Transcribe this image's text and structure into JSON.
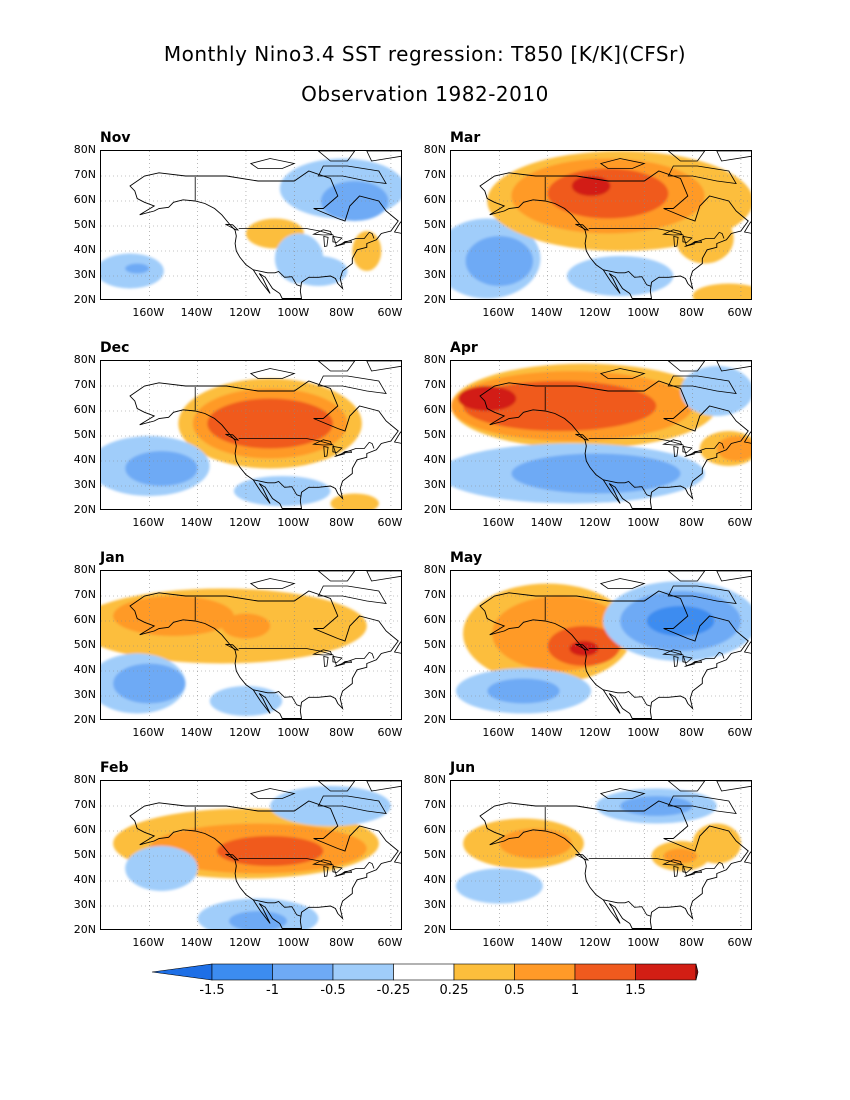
{
  "title_line1": "Monthly Nino3.4 SST regression: T850 [K/K](CFSr)",
  "title_line2": "Observation 1982-2010",
  "lat_ticks": [
    "80N",
    "70N",
    "60N",
    "50N",
    "40N",
    "30N",
    "20N"
  ],
  "lon_ticks": [
    "160W",
    "140W",
    "120W",
    "100W",
    "80W",
    "60W"
  ],
  "colors": {
    "-1.5": "#1e6fe6",
    "-1": "#3c8cf0",
    "-0.5": "#6eaaf5",
    "-0.25": "#a0cdfa",
    "0": "#ffffff",
    "0.25": "#fcbe3c",
    "0.5": "#ff9a28",
    "1": "#f05a1e",
    "1.5": "#d21e14",
    "max": "#a00a0a"
  },
  "colorbar": {
    "labels": [
      "-1.5",
      "-1",
      "-0.5",
      "-0.25",
      "0.25",
      "0.5",
      "1",
      "1.5"
    ]
  },
  "panels": [
    {
      "month": "Nov",
      "blobs": [
        {
          "lon": -108,
          "lat": 47,
          "rx": 12,
          "ry": 6,
          "level": 0.25
        },
        {
          "lon": -70,
          "lat": 40,
          "rx": 6,
          "ry": 8,
          "level": 0.25
        },
        {
          "lon": -90,
          "lat": 32,
          "rx": 12,
          "ry": 6,
          "level": -0.25
        },
        {
          "lon": -98,
          "lat": 37,
          "rx": 10,
          "ry": 10,
          "level": -0.25
        },
        {
          "lon": -168,
          "lat": 32,
          "rx": 14,
          "ry": 7,
          "level": -0.25
        },
        {
          "lon": -165,
          "lat": 33,
          "rx": 5,
          "ry": 2,
          "level": -0.5
        },
        {
          "lon": -80,
          "lat": 65,
          "rx": 26,
          "ry": 12,
          "level": -0.25
        },
        {
          "lon": -75,
          "lat": 60,
          "rx": 14,
          "ry": 8,
          "level": -0.5
        }
      ]
    },
    {
      "month": "Mar",
      "blobs": [
        {
          "lon": -165,
          "lat": 37,
          "rx": 22,
          "ry": 16,
          "level": -0.25
        },
        {
          "lon": -160,
          "lat": 36,
          "rx": 14,
          "ry": 10,
          "level": -0.5
        },
        {
          "lon": -110,
          "lat": 30,
          "rx": 22,
          "ry": 8,
          "level": -0.25
        },
        {
          "lon": -110,
          "lat": 60,
          "rx": 55,
          "ry": 20,
          "level": 0.25
        },
        {
          "lon": -115,
          "lat": 62,
          "rx": 40,
          "ry": 15,
          "level": 0.5
        },
        {
          "lon": -115,
          "lat": 63,
          "rx": 25,
          "ry": 10,
          "level": 1
        },
        {
          "lon": -122,
          "lat": 66,
          "rx": 8,
          "ry": 4,
          "level": 1.5
        },
        {
          "lon": -75,
          "lat": 45,
          "rx": 12,
          "ry": 10,
          "level": 0.25
        },
        {
          "lon": -65,
          "lat": 22,
          "rx": 15,
          "ry": 5,
          "level": 0.25
        }
      ]
    },
    {
      "month": "Dec",
      "blobs": [
        {
          "lon": -110,
          "lat": 55,
          "rx": 38,
          "ry": 18,
          "level": 0.25
        },
        {
          "lon": -110,
          "lat": 55,
          "rx": 32,
          "ry": 14,
          "level": 0.5
        },
        {
          "lon": -110,
          "lat": 55,
          "rx": 26,
          "ry": 10,
          "level": 1
        },
        {
          "lon": -160,
          "lat": 38,
          "rx": 25,
          "ry": 12,
          "level": -0.25
        },
        {
          "lon": -155,
          "lat": 37,
          "rx": 15,
          "ry": 7,
          "level": -0.5
        },
        {
          "lon": -105,
          "lat": 28,
          "rx": 20,
          "ry": 6,
          "level": -0.25
        },
        {
          "lon": -75,
          "lat": 23,
          "rx": 10,
          "ry": 4,
          "level": 0.25
        }
      ]
    },
    {
      "month": "Apr",
      "blobs": [
        {
          "lon": -125,
          "lat": 62,
          "rx": 55,
          "ry": 17,
          "level": 0.25
        },
        {
          "lon": -130,
          "lat": 62,
          "rx": 50,
          "ry": 14,
          "level": 0.5
        },
        {
          "lon": -135,
          "lat": 62,
          "rx": 40,
          "ry": 10,
          "level": 1
        },
        {
          "lon": -165,
          "lat": 65,
          "rx": 12,
          "ry": 5,
          "level": 1.5
        },
        {
          "lon": -130,
          "lat": 35,
          "rx": 55,
          "ry": 12,
          "level": -0.25
        },
        {
          "lon": -120,
          "lat": 35,
          "rx": 35,
          "ry": 8,
          "level": -0.5
        },
        {
          "lon": -70,
          "lat": 68,
          "rx": 15,
          "ry": 10,
          "level": -0.25
        },
        {
          "lon": -65,
          "lat": 45,
          "rx": 12,
          "ry": 7,
          "level": 0.25
        },
        {
          "lon": -62,
          "lat": 45,
          "rx": 8,
          "ry": 5,
          "level": 0.5
        }
      ]
    },
    {
      "month": "Jan",
      "blobs": [
        {
          "lon": -130,
          "lat": 58,
          "rx": 60,
          "ry": 15,
          "level": 0.25
        },
        {
          "lon": -150,
          "lat": 62,
          "rx": 25,
          "ry": 8,
          "level": 0.5
        },
        {
          "lon": -120,
          "lat": 58,
          "rx": 10,
          "ry": 5,
          "level": 0.5
        },
        {
          "lon": -165,
          "lat": 35,
          "rx": 20,
          "ry": 12,
          "level": -0.25
        },
        {
          "lon": -160,
          "lat": 35,
          "rx": 15,
          "ry": 8,
          "level": -0.5
        },
        {
          "lon": -120,
          "lat": 28,
          "rx": 15,
          "ry": 6,
          "level": -0.25
        }
      ]
    },
    {
      "month": "May",
      "blobs": [
        {
          "lon": -140,
          "lat": 55,
          "rx": 35,
          "ry": 20,
          "level": 0.25
        },
        {
          "lon": -135,
          "lat": 55,
          "rx": 28,
          "ry": 15,
          "level": 0.5
        },
        {
          "lon": -125,
          "lat": 50,
          "rx": 15,
          "ry": 8,
          "level": 1
        },
        {
          "lon": -125,
          "lat": 49,
          "rx": 6,
          "ry": 3,
          "level": 1.5
        },
        {
          "lon": -85,
          "lat": 60,
          "rx": 32,
          "ry": 16,
          "level": -0.25
        },
        {
          "lon": -85,
          "lat": 60,
          "rx": 25,
          "ry": 12,
          "level": -0.5
        },
        {
          "lon": -85,
          "lat": 60,
          "rx": 14,
          "ry": 6,
          "level": -1
        },
        {
          "lon": -150,
          "lat": 32,
          "rx": 28,
          "ry": 9,
          "level": -0.25
        },
        {
          "lon": -150,
          "lat": 32,
          "rx": 15,
          "ry": 5,
          "level": -0.5
        }
      ]
    },
    {
      "month": "Feb",
      "blobs": [
        {
          "lon": -120,
          "lat": 55,
          "rx": 55,
          "ry": 14,
          "level": 0.25
        },
        {
          "lon": -115,
          "lat": 53,
          "rx": 45,
          "ry": 10,
          "level": 0.5
        },
        {
          "lon": -110,
          "lat": 52,
          "rx": 22,
          "ry": 6,
          "level": 1
        },
        {
          "lon": -155,
          "lat": 45,
          "rx": 15,
          "ry": 9,
          "level": -0.25
        },
        {
          "lon": -115,
          "lat": 25,
          "rx": 25,
          "ry": 8,
          "level": -0.25
        },
        {
          "lon": -115,
          "lat": 24,
          "rx": 12,
          "ry": 4,
          "level": -0.5
        },
        {
          "lon": -85,
          "lat": 70,
          "rx": 25,
          "ry": 8,
          "level": -0.25
        }
      ]
    },
    {
      "month": "Jun",
      "blobs": [
        {
          "lon": -150,
          "lat": 55,
          "rx": 25,
          "ry": 10,
          "level": 0.25
        },
        {
          "lon": -145,
          "lat": 55,
          "rx": 15,
          "ry": 6,
          "level": 0.5
        },
        {
          "lon": -85,
          "lat": 50,
          "rx": 12,
          "ry": 6,
          "level": 0.25
        },
        {
          "lon": -85,
          "lat": 50,
          "rx": 7,
          "ry": 3,
          "level": 0.5
        },
        {
          "lon": -95,
          "lat": 70,
          "rx": 25,
          "ry": 7,
          "level": -0.25
        },
        {
          "lon": -95,
          "lat": 70,
          "rx": 15,
          "ry": 4,
          "level": -0.5
        },
        {
          "lon": -160,
          "lat": 38,
          "rx": 18,
          "ry": 7,
          "level": -0.25
        },
        {
          "lon": -70,
          "lat": 55,
          "rx": 10,
          "ry": 8,
          "level": 0.25
        }
      ]
    }
  ]
}
